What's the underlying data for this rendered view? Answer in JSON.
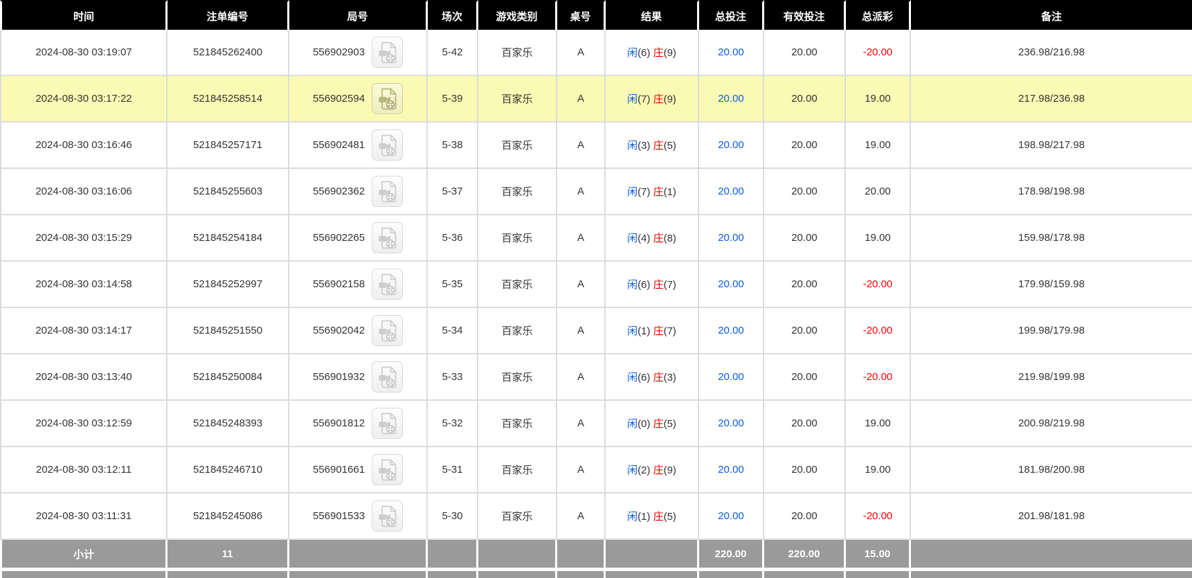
{
  "table": {
    "columns": [
      {
        "key": "time",
        "label": "时间"
      },
      {
        "key": "bet_id",
        "label": "注单编号"
      },
      {
        "key": "round",
        "label": "局号"
      },
      {
        "key": "session",
        "label": "场次"
      },
      {
        "key": "game_type",
        "label": "游戏类别"
      },
      {
        "key": "table_no",
        "label": "桌号"
      },
      {
        "key": "result",
        "label": "结果"
      },
      {
        "key": "total_bet",
        "label": "总投注"
      },
      {
        "key": "valid_bet",
        "label": "有效投注"
      },
      {
        "key": "total_payout",
        "label": "总派彩"
      },
      {
        "key": "remark",
        "label": "备注"
      }
    ],
    "result_labels": {
      "player": "闲",
      "banker": "庄"
    },
    "rows": [
      {
        "time": "2024-08-30 03:19:07",
        "bet_id": "521845262400",
        "round": "556902903",
        "has_video": true,
        "session": "5-42",
        "game_type": "百家乐",
        "table_no": "A",
        "player": "6",
        "banker": "9",
        "total_bet": "20.00",
        "valid_bet": "20.00",
        "payout": "-20.00",
        "payout_negative": true,
        "remark": "236.98/216.98",
        "highlighted": false
      },
      {
        "time": "2024-08-30 03:17:22",
        "bet_id": "521845258514",
        "round": "556902594",
        "has_video": true,
        "session": "5-39",
        "game_type": "百家乐",
        "table_no": "A",
        "player": "7",
        "banker": "9",
        "total_bet": "20.00",
        "valid_bet": "20.00",
        "payout": "19.00",
        "payout_negative": false,
        "remark": "217.98/236.98",
        "highlighted": true
      },
      {
        "time": "2024-08-30 03:16:46",
        "bet_id": "521845257171",
        "round": "556902481",
        "has_video": true,
        "session": "5-38",
        "game_type": "百家乐",
        "table_no": "A",
        "player": "3",
        "banker": "5",
        "total_bet": "20.00",
        "valid_bet": "20.00",
        "payout": "19.00",
        "payout_negative": false,
        "remark": "198.98/217.98",
        "highlighted": false
      },
      {
        "time": "2024-08-30 03:16:06",
        "bet_id": "521845255603",
        "round": "556902362",
        "has_video": true,
        "session": "5-37",
        "game_type": "百家乐",
        "table_no": "A",
        "player": "7",
        "banker": "1",
        "total_bet": "20.00",
        "valid_bet": "20.00",
        "payout": "20.00",
        "payout_negative": false,
        "remark": "178.98/198.98",
        "highlighted": false
      },
      {
        "time": "2024-08-30 03:15:29",
        "bet_id": "521845254184",
        "round": "556902265",
        "has_video": true,
        "session": "5-36",
        "game_type": "百家乐",
        "table_no": "A",
        "player": "4",
        "banker": "8",
        "total_bet": "20.00",
        "valid_bet": "20.00",
        "payout": "19.00",
        "payout_negative": false,
        "remark": "159.98/178.98",
        "highlighted": false
      },
      {
        "time": "2024-08-30 03:14:58",
        "bet_id": "521845252997",
        "round": "556902158",
        "has_video": true,
        "session": "5-35",
        "game_type": "百家乐",
        "table_no": "A",
        "player": "6",
        "banker": "7",
        "total_bet": "20.00",
        "valid_bet": "20.00",
        "payout": "-20.00",
        "payout_negative": true,
        "remark": "179.98/159.98",
        "highlighted": false
      },
      {
        "time": "2024-08-30 03:14:17",
        "bet_id": "521845251550",
        "round": "556902042",
        "has_video": true,
        "session": "5-34",
        "game_type": "百家乐",
        "table_no": "A",
        "player": "1",
        "banker": "7",
        "total_bet": "20.00",
        "valid_bet": "20.00",
        "payout": "-20.00",
        "payout_negative": true,
        "remark": "199.98/179.98",
        "highlighted": false
      },
      {
        "time": "2024-08-30 03:13:40",
        "bet_id": "521845250084",
        "round": "556901932",
        "has_video": true,
        "session": "5-33",
        "game_type": "百家乐",
        "table_no": "A",
        "player": "6",
        "banker": "3",
        "total_bet": "20.00",
        "valid_bet": "20.00",
        "payout": "-20.00",
        "payout_negative": true,
        "remark": "219.98/199.98",
        "highlighted": false
      },
      {
        "time": "2024-08-30 03:12:59",
        "bet_id": "521845248393",
        "round": "556901812",
        "has_video": true,
        "session": "5-32",
        "game_type": "百家乐",
        "table_no": "A",
        "player": "0",
        "banker": "5",
        "total_bet": "20.00",
        "valid_bet": "20.00",
        "payout": "19.00",
        "payout_negative": false,
        "remark": "200.98/219.98",
        "highlighted": false
      },
      {
        "time": "2024-08-30 03:12:11",
        "bet_id": "521845246710",
        "round": "556901661",
        "has_video": true,
        "session": "5-31",
        "game_type": "百家乐",
        "table_no": "A",
        "player": "2",
        "banker": "9",
        "total_bet": "20.00",
        "valid_bet": "20.00",
        "payout": "19.00",
        "payout_negative": false,
        "remark": "181.98/200.98",
        "highlighted": false
      },
      {
        "time": "2024-08-30 03:11:31",
        "bet_id": "521845245086",
        "round": "556901533",
        "has_video": true,
        "session": "5-30",
        "game_type": "百家乐",
        "table_no": "A",
        "player": "1",
        "banker": "5",
        "total_bet": "20.00",
        "valid_bet": "20.00",
        "payout": "-20.00",
        "payout_negative": true,
        "remark": "201.98/181.98",
        "highlighted": false
      }
    ],
    "subtotal": {
      "label": "小计",
      "count": "11",
      "total_bet": "220.00",
      "valid_bet": "220.00",
      "total_payout": "15.00"
    }
  },
  "colors": {
    "header_bg": "#000000",
    "highlight_row_bg": "#FAFAB4",
    "subtotal_bg": "#9a9a9a",
    "link_blue": "#0b5ce0",
    "negative_red": "#ff0000",
    "body_border": "#dcdcdc"
  }
}
